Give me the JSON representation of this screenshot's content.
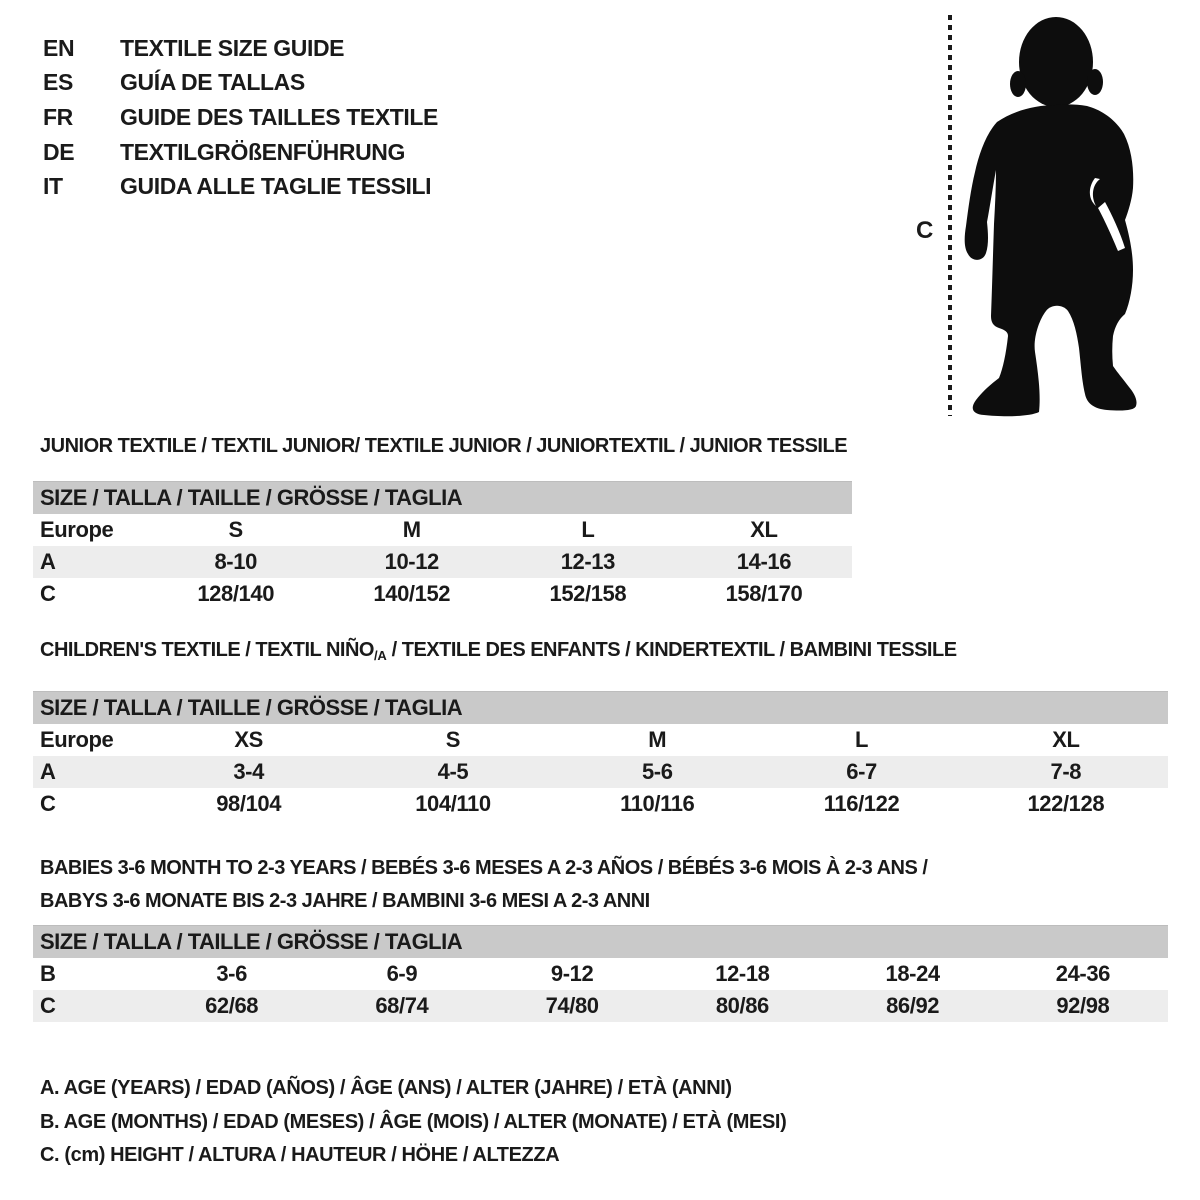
{
  "colors": {
    "text": "#1a1a1a",
    "band": "#c9c9c9",
    "shade": "#ededed",
    "bg": "#ffffff"
  },
  "languages": [
    {
      "code": "EN",
      "label": "TEXTILE SIZE GUIDE"
    },
    {
      "code": "ES",
      "label": "GUÍA DE TALLAS"
    },
    {
      "code": "FR",
      "label": "GUIDE DES TAILLES TEXTILE"
    },
    {
      "code": "DE",
      "label": "TEXTILGRÖßENFÜHRUNG"
    },
    {
      "code": "IT",
      "label": "GUIDA ALLE TAGLIE TESSILI"
    }
  ],
  "figure": {
    "measure_label": "C",
    "description": "toddler-silhouette"
  },
  "sections": {
    "junior": {
      "title": "JUNIOR TEXTILE / TEXTIL JUNIOR/ TEXTILE JUNIOR / JUNIORTEXTIL / JUNIOR TESSILE",
      "table": {
        "size_header": "SIZE / TALLA / TAILLE / GRÖSSE / TAGLIA",
        "rows": [
          {
            "label": "Europe",
            "cells": [
              "S",
              "M",
              "L",
              "XL"
            ],
            "shaded": false
          },
          {
            "label": "A",
            "cells": [
              "8-10",
              "10-12",
              "12-13",
              "14-16"
            ],
            "shaded": true
          },
          {
            "label": "C",
            "cells": [
              "128/140",
              "140/152",
              "152/158",
              "158/170"
            ],
            "shaded": false
          }
        ]
      }
    },
    "children": {
      "title_pre": "CHILDREN'S TEXTILE / TEXTIL NIÑO",
      "title_sub": "/A",
      "title_post": " / TEXTILE DES ENFANTS / KINDERTEXTIL / BAMBINI TESSILE",
      "table": {
        "size_header": "SIZE / TALLA / TAILLE / GRÖSSE / TAGLIA",
        "rows": [
          {
            "label": "Europe",
            "cells": [
              "XS",
              "S",
              "M",
              "L",
              "XL"
            ],
            "shaded": false
          },
          {
            "label": "A",
            "cells": [
              "3-4",
              "4-5",
              "5-6",
              "6-7",
              "7-8"
            ],
            "shaded": true
          },
          {
            "label": "C",
            "cells": [
              "98/104",
              "104/110",
              "110/116",
              "116/122",
              "122/128"
            ],
            "shaded": false
          }
        ]
      }
    },
    "babies": {
      "title_line1": "BABIES 3-6 MONTH TO 2-3 YEARS / BEBÉS 3-6 MESES A 2-3 AÑOS / BÉBÉS 3-6 MOIS À 2-3 ANS /",
      "title_line2": "BABYS 3-6 MONATE BIS 2-3 JAHRE / BAMBINI 3-6 MESI A 2-3 ANNI",
      "table": {
        "size_header": "SIZE / TALLA / TAILLE / GRÖSSE / TAGLIA",
        "rows": [
          {
            "label": "B",
            "cells": [
              "3-6",
              "6-9",
              "9-12",
              "12-18",
              "18-24",
              "24-36"
            ],
            "shaded": false
          },
          {
            "label": "C",
            "cells": [
              "62/68",
              "68/74",
              "74/80",
              "80/86",
              "86/92",
              "92/98"
            ],
            "shaded": true
          }
        ]
      }
    }
  },
  "legend": {
    "lines": [
      "A. AGE (YEARS) / EDAD (AÑOS) / ÂGE (ANS) / ALTER (JAHRE) / ETÀ (ANNI)",
      "B. AGE (MONTHS) / EDAD (MESES) / ÂGE (MOIS) / ALTER (MONATE) / ETÀ (MESI)",
      "C. (cm) HEIGHT / ALTURA / HAUTEUR / HÖHE / ALTEZZA"
    ]
  }
}
